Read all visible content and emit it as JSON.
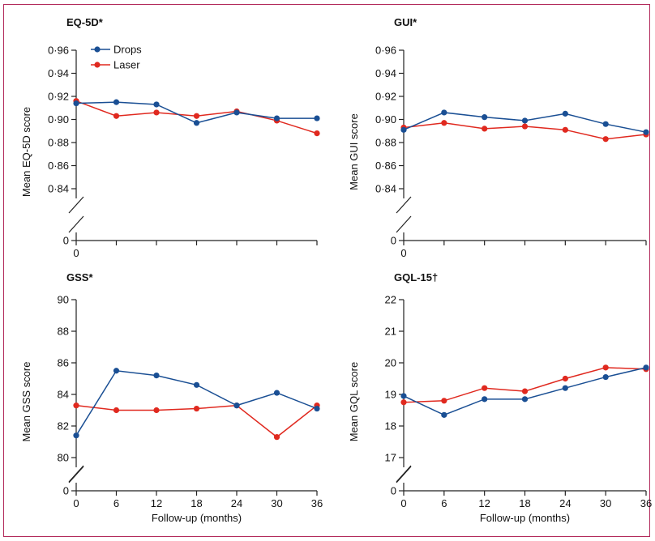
{
  "colors": {
    "drops": "#1a4f94",
    "laser": "#e0291f",
    "frame": "#b22a5b",
    "axis": "#222222"
  },
  "legend": {
    "drops": "Drops",
    "laser": "Laser"
  },
  "chart_data": [
    {
      "type": "line",
      "title": "EQ-5D*",
      "ylabel": "Mean EQ-5D score",
      "xlabel": "",
      "x": [
        0,
        6,
        12,
        18,
        24,
        30,
        36
      ],
      "xticks": [
        "0"
      ],
      "ylim": [
        0.84,
        0.96
      ],
      "axis_break": true,
      "yticks": [
        "0",
        "0·84",
        "0·86",
        "0·88",
        "0·90",
        "0·92",
        "0·94",
        "0·96"
      ],
      "ytick_values": [
        0.84,
        0.86,
        0.88,
        0.9,
        0.92,
        0.94,
        0.96
      ],
      "series": [
        {
          "name": "Drops",
          "values": [
            0.914,
            0.915,
            0.913,
            0.897,
            0.906,
            0.901,
            0.901
          ]
        },
        {
          "name": "Laser",
          "values": [
            0.916,
            0.903,
            0.906,
            0.903,
            0.907,
            0.899,
            0.888
          ]
        }
      ],
      "legend": "top-left"
    },
    {
      "type": "line",
      "title": "GUI*",
      "ylabel": "Mean GUI score",
      "xlabel": "",
      "x": [
        0,
        6,
        12,
        18,
        24,
        30,
        36
      ],
      "xticks": [
        "0"
      ],
      "ylim": [
        0.84,
        0.96
      ],
      "axis_break": true,
      "yticks": [
        "0",
        "0·84",
        "0·86",
        "0·88",
        "0·90",
        "0·92",
        "0·94",
        "0·96"
      ],
      "ytick_values": [
        0.84,
        0.86,
        0.88,
        0.9,
        0.92,
        0.94,
        0.96
      ],
      "series": [
        {
          "name": "Drops",
          "values": [
            0.891,
            0.906,
            0.902,
            0.899,
            0.905,
            0.896,
            0.889
          ]
        },
        {
          "name": "Laser",
          "values": [
            0.893,
            0.897,
            0.892,
            0.894,
            0.891,
            0.883,
            0.887
          ]
        }
      ]
    },
    {
      "type": "line",
      "title": "GSS*",
      "ylabel": "Mean GSS score",
      "xlabel": "Follow-up (months)",
      "x": [
        0,
        6,
        12,
        18,
        24,
        30,
        36
      ],
      "xticks": [
        "0",
        "6",
        "12",
        "18",
        "24",
        "30",
        "36"
      ],
      "ylim": [
        80,
        90
      ],
      "axis_break": true,
      "yticks": [
        "0",
        "80",
        "82",
        "84",
        "86",
        "88",
        "90"
      ],
      "ytick_values": [
        80,
        82,
        84,
        86,
        88,
        90
      ],
      "series": [
        {
          "name": "Drops",
          "values": [
            81.4,
            85.5,
            85.2,
            84.6,
            83.3,
            84.1,
            83.1
          ]
        },
        {
          "name": "Laser",
          "values": [
            83.3,
            83.0,
            83.0,
            83.1,
            83.3,
            81.3,
            83.3
          ]
        }
      ]
    },
    {
      "type": "line",
      "title": "GQL-15†",
      "ylabel": "Mean GQL score",
      "xlabel": "Follow-up (months)",
      "x": [
        0,
        6,
        12,
        18,
        24,
        30,
        36
      ],
      "xticks": [
        "0",
        "6",
        "12",
        "18",
        "24",
        "30",
        "36"
      ],
      "ylim": [
        17,
        22
      ],
      "axis_break": true,
      "yticks": [
        "0",
        "17",
        "18",
        "19",
        "20",
        "21",
        "22"
      ],
      "ytick_values": [
        17,
        18,
        19,
        20,
        21,
        22
      ],
      "series": [
        {
          "name": "Drops",
          "values": [
            18.95,
            18.35,
            18.85,
            18.85,
            19.2,
            19.55,
            19.85
          ]
        },
        {
          "name": "Laser",
          "values": [
            18.75,
            18.8,
            19.2,
            19.1,
            19.5,
            19.85,
            19.8
          ]
        }
      ]
    }
  ]
}
